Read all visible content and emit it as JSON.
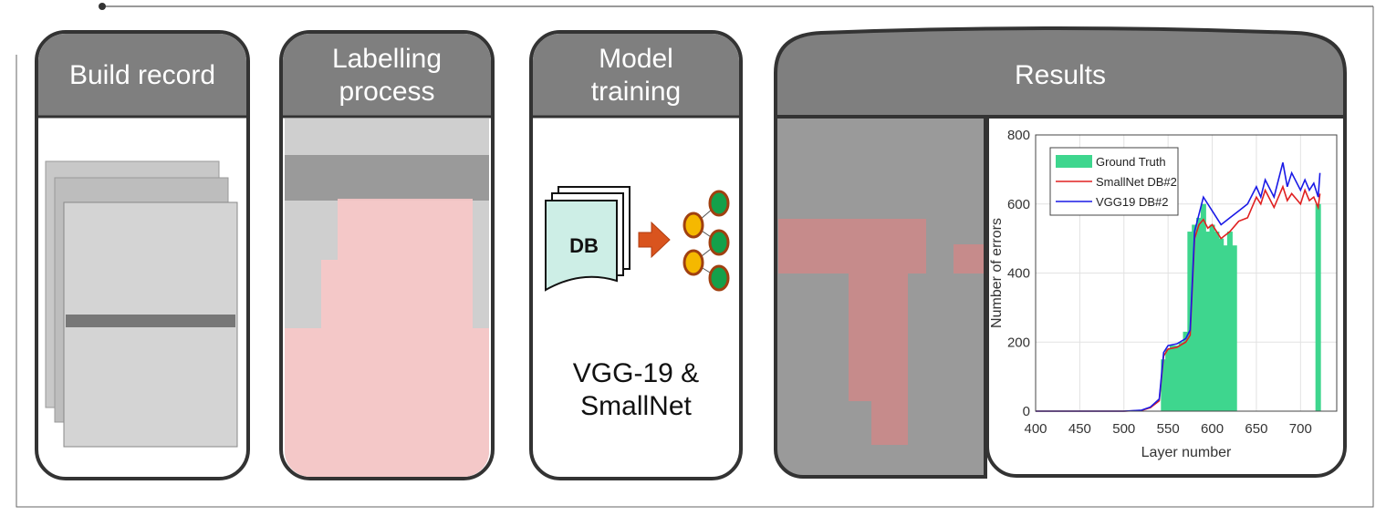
{
  "panels": [
    {
      "title": "Build record"
    },
    {
      "title": "Labelling process"
    },
    {
      "title": "Model training",
      "icon_label": "DB",
      "caption": "VGG-19 & SmallNet"
    },
    {
      "title": "Results"
    }
  ],
  "chart_data": {
    "type": "line",
    "xlabel": "Layer number",
    "ylabel": "Number of errors",
    "xlim": [
      400,
      741
    ],
    "ylim": [
      0,
      800
    ],
    "xticks": [
      400,
      450,
      500,
      550,
      600,
      650,
      700
    ],
    "yticks": [
      0,
      200,
      400,
      600,
      800
    ],
    "grid": true,
    "legend": "upper left",
    "series": [
      {
        "name": "Ground Truth",
        "color": "#3ed68e",
        "kind": "bar",
        "x": [
          545,
          550,
          555,
          560,
          565,
          570,
          575,
          580,
          585,
          590,
          595,
          600,
          605,
          610,
          615,
          620,
          625,
          720
        ],
        "values": [
          150,
          180,
          190,
          190,
          200,
          230,
          520,
          540,
          560,
          600,
          520,
          540,
          520,
          500,
          480,
          520,
          480,
          600
        ]
      },
      {
        "name": "SmallNet DB#2",
        "color": "#e02020",
        "x": [
          400,
          450,
          500,
          520,
          530,
          540,
          545,
          550,
          560,
          570,
          575,
          580,
          585,
          590,
          595,
          600,
          610,
          620,
          630,
          640,
          650,
          655,
          660,
          670,
          680,
          685,
          690,
          700,
          705,
          710,
          715,
          720,
          722
        ],
        "values": [
          0,
          0,
          0,
          2,
          10,
          30,
          160,
          180,
          185,
          200,
          220,
          500,
          540,
          555,
          530,
          540,
          500,
          520,
          550,
          560,
          620,
          600,
          640,
          590,
          650,
          610,
          630,
          600,
          640,
          610,
          620,
          590,
          630
        ]
      },
      {
        "name": "VGG19 DB#2",
        "color": "#1a1ae6",
        "x": [
          400,
          450,
          500,
          520,
          530,
          540,
          545,
          550,
          560,
          570,
          575,
          580,
          585,
          590,
          595,
          600,
          610,
          620,
          630,
          640,
          650,
          655,
          660,
          670,
          680,
          685,
          690,
          700,
          705,
          710,
          715,
          720,
          722
        ],
        "values": [
          0,
          0,
          0,
          3,
          12,
          35,
          170,
          190,
          195,
          210,
          235,
          520,
          570,
          620,
          600,
          580,
          540,
          560,
          580,
          600,
          650,
          620,
          670,
          620,
          720,
          650,
          690,
          640,
          670,
          640,
          660,
          620,
          690
        ]
      }
    ]
  }
}
